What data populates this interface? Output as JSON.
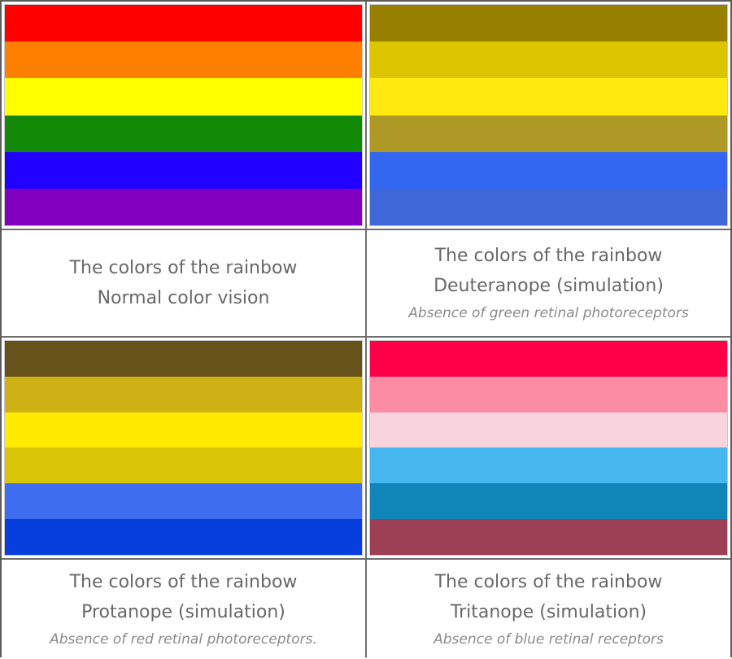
{
  "panels": [
    {
      "title": "The colors of the rainbow",
      "subtitle": "Normal color vision",
      "note": "",
      "stripes": [
        "#ff0000",
        "#ff8000",
        "#ffff00",
        "#138a07",
        "#2200ff",
        "#8200c0"
      ]
    },
    {
      "title": "The colors of the rainbow",
      "subtitle": "Deuteranope (simulation)",
      "note": "Absence of green retinal photoreceptors",
      "stripes": [
        "#978000",
        "#dac500",
        "#ffe90f",
        "#ae9926",
        "#3366f1",
        "#4067d8"
      ]
    },
    {
      "title": "The colors of the rainbow",
      "subtitle": "Protanope (simulation)",
      "note": "Absence of red retinal photoreceptors.",
      "stripes": [
        "#66521a",
        "#cdb115",
        "#ffea00",
        "#dac408",
        "#3f6df0",
        "#063fdd"
      ]
    },
    {
      "title": "The colors of the rainbow",
      "subtitle": "Tritanope (simulation)",
      "note": "Absence of blue retinal receptors",
      "stripes": [
        "#ff0048",
        "#fc8ca3",
        "#f9d4dc",
        "#46b8ef",
        "#0f85b8",
        "#9d3f55"
      ]
    }
  ]
}
